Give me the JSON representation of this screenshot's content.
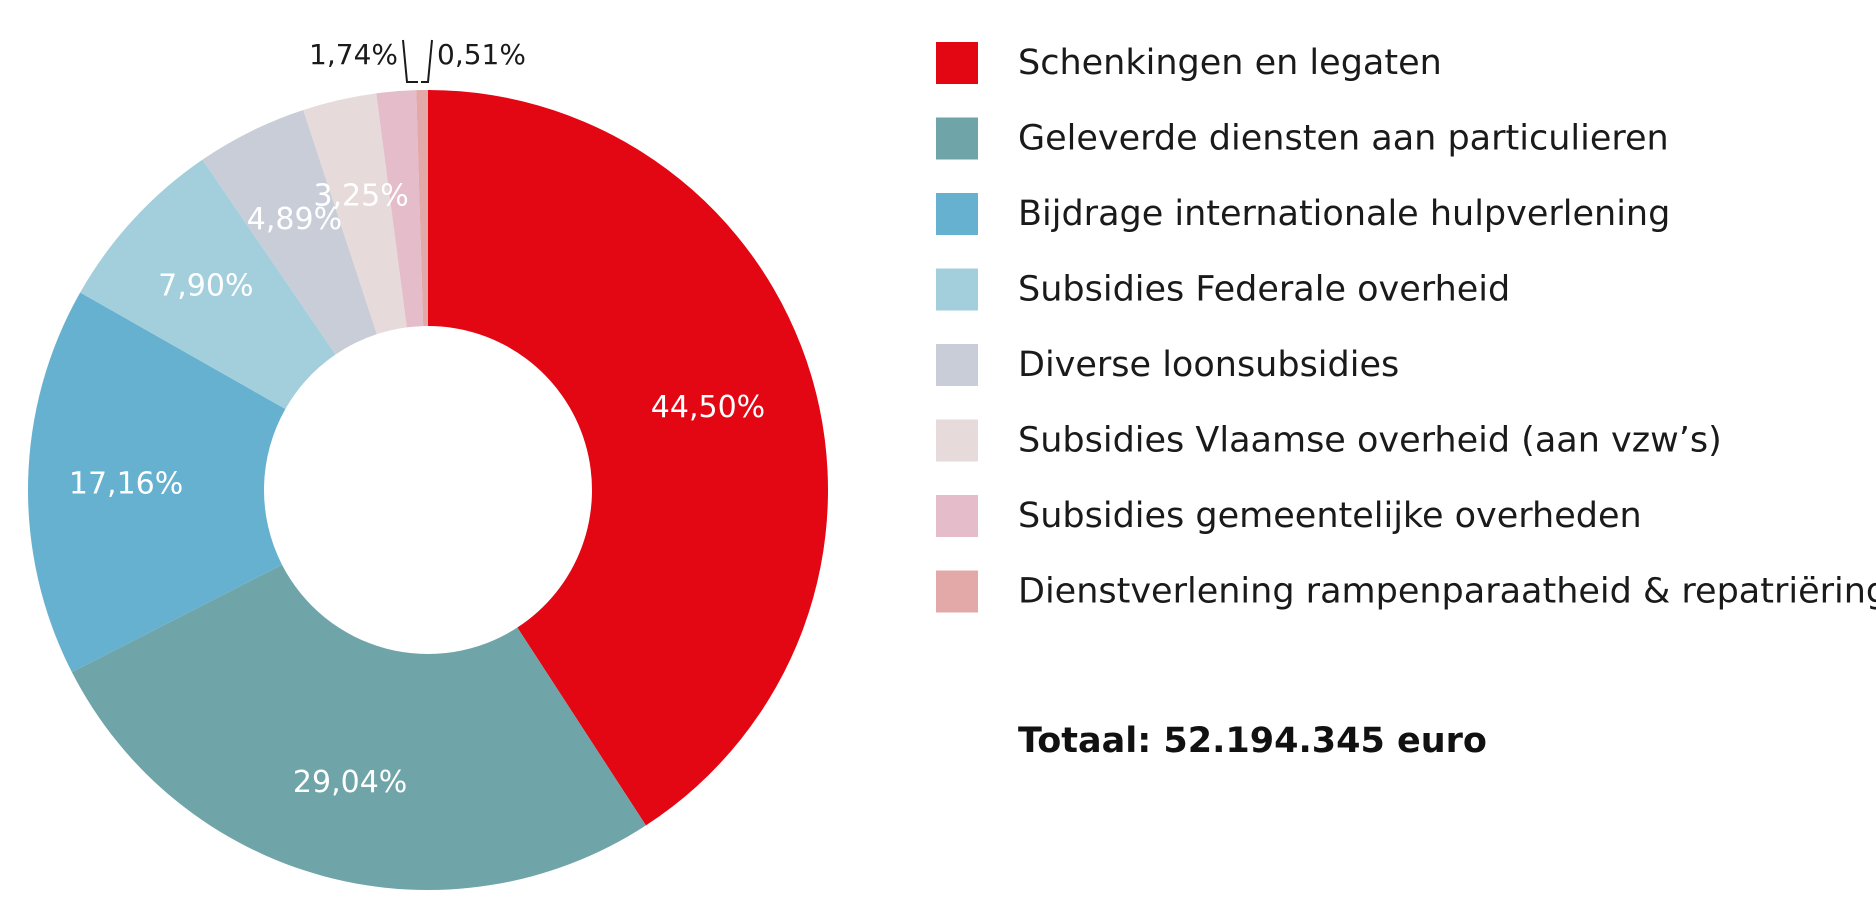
{
  "chart_data": {
    "type": "pie",
    "donut": true,
    "categories": [
      "Schenkingen en legaten",
      "Geleverde diensten aan particulieren",
      "Bijdrage internationale hulpverlening",
      "Subsidies Federale overheid",
      "Diverse loonsubsidies",
      "Subsidies Vlaamse overheid (aan vzw’s)",
      "Subsidies gemeentelijke overheden",
      "Dienstverlening rampenparaatheid & repatriëring"
    ],
    "values": [
      44.5,
      29.04,
      17.16,
      7.9,
      4.89,
      3.25,
      1.74,
      0.51
    ],
    "labels": [
      "44,50%",
      "29,04%",
      "17,16%",
      "7,90%",
      "4,89%",
      "3,25%",
      "1,74%",
      "0,51%"
    ],
    "colors": [
      "#e30613",
      "#6fa5a8",
      "#67b1d0",
      "#a3cfdc",
      "#c8cdd8",
      "#e6dbda",
      "#e4bcca",
      "#e3a8a8"
    ],
    "legend_position": "right",
    "total_label": "Totaal: 52.194.345 euro"
  }
}
